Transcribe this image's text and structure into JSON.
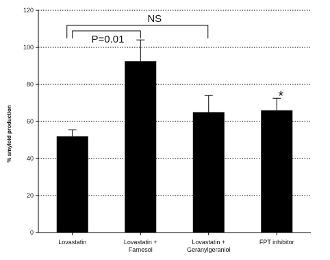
{
  "chart_data": {
    "type": "bar",
    "title": "",
    "xlabel": "",
    "ylabel": "% amyloid production",
    "ylim": [
      0,
      120
    ],
    "yticks": [
      0,
      20,
      40,
      60,
      80,
      100,
      120
    ],
    "grid": "horizontal dotted",
    "categories": [
      [
        "Lovastatin"
      ],
      [
        "Lovastatin +",
        "Farnesol"
      ],
      [
        "Lovastatin +",
        "Geranylgeraniol"
      ],
      [
        "FPT inhibitor"
      ]
    ],
    "values": [
      52,
      92.5,
      65,
      66
    ],
    "errors": [
      3.5,
      11.5,
      9,
      6.5
    ],
    "bar_color": "#000000",
    "annotations": {
      "bracket_p": {
        "label": "P=0.01",
        "from": 0,
        "to": 1
      },
      "bracket_ns": {
        "label": "NS",
        "from": 0,
        "to": 2
      },
      "significance_star": {
        "label": "*",
        "bar": 3
      }
    }
  }
}
